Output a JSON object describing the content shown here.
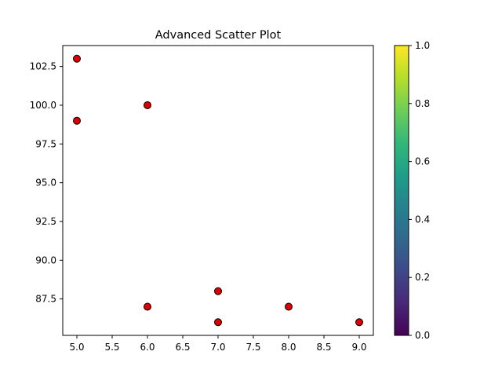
{
  "chart_data": {
    "type": "scatter",
    "title": "Advanced Scatter Plot",
    "xlabel": "",
    "ylabel": "",
    "xlim": [
      4.8,
      9.2
    ],
    "ylim": [
      85.15,
      103.85
    ],
    "x_ticks": [
      5.0,
      5.5,
      6.0,
      6.5,
      7.0,
      7.5,
      8.0,
      8.5,
      9.0
    ],
    "x_tick_labels": [
      "5.0",
      "5.5",
      "6.0",
      "6.5",
      "7.0",
      "7.5",
      "8.0",
      "8.5",
      "9.0"
    ],
    "y_ticks": [
      87.5,
      90.0,
      92.5,
      95.0,
      97.5,
      100.0,
      102.5
    ],
    "y_tick_labels": [
      "87.5",
      "90.0",
      "92.5",
      "95.0",
      "97.5",
      "100.0",
      "102.5"
    ],
    "grid": false,
    "points": [
      {
        "x": 5,
        "y": 99
      },
      {
        "x": 7,
        "y": 86
      },
      {
        "x": 8,
        "y": 87
      },
      {
        "x": 7,
        "y": 88
      },
      {
        "x": 5,
        "y": 103
      },
      {
        "x": 6,
        "y": 87
      },
      {
        "x": 9,
        "y": 86
      },
      {
        "x": 6,
        "y": 100
      }
    ],
    "marker_color": "#dd0000",
    "marker_edge_color": "#000000",
    "colorbar": {
      "colormap": "viridis",
      "range": [
        0.0,
        1.0
      ],
      "ticks": [
        0.0,
        0.2,
        0.4,
        0.6,
        0.8,
        1.0
      ],
      "tick_labels": [
        "0.0",
        "0.2",
        "0.4",
        "0.6",
        "0.8",
        "1.0"
      ],
      "colors": [
        "#440154",
        "#482878",
        "#3e4989",
        "#31688e",
        "#26828e",
        "#1f9e89",
        "#35b779",
        "#6ece58",
        "#b5de2b",
        "#fde725"
      ]
    }
  }
}
